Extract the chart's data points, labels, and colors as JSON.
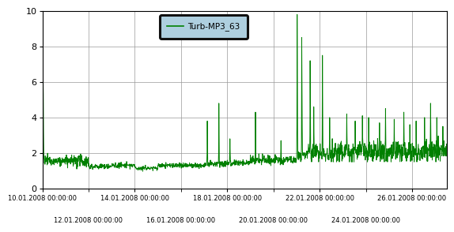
{
  "legend_label": "Turb-MP3_63",
  "line_color": "#008000",
  "line_width": 0.7,
  "ylim": [
    0,
    10
  ],
  "yticks": [
    0,
    2,
    4,
    6,
    8,
    10
  ],
  "background_color": "#ffffff",
  "legend_facecolor": "#aecfdf",
  "legend_edgecolor": "#111111",
  "major_xtick_offsets": [
    0,
    4,
    8,
    12,
    16
  ],
  "minor_xtick_offsets": [
    2,
    6,
    10,
    14
  ],
  "major_labels": [
    "10.01.2008 00:00:00",
    "14.01.2008 00:00:00",
    "18.01.2008 00:00:00",
    "22.01.2008 00:00:00",
    "26.01.2008 00:00:00"
  ],
  "minor_labels": [
    "12.01.2008 00:00:00",
    "16.01.2008 00:00:00",
    "20.01.2008 00:00:00",
    "24.01.2008 00:00:00"
  ],
  "n_days": 17.5,
  "grid_color": "#999999",
  "grid_linewidth": 0.5
}
